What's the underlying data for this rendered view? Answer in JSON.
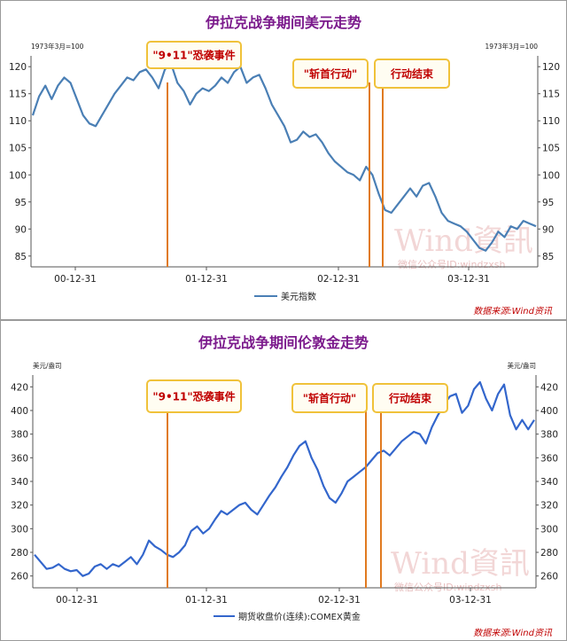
{
  "chart_data": [
    {
      "type": "line",
      "title": "伊拉克战争期间美元走势",
      "unit_label": "1973年3月=100",
      "x_tick_labels": [
        "00-12-31",
        "01-12-31",
        "02-12-31",
        "03-12-31"
      ],
      "y_ticks": [
        85,
        90,
        95,
        100,
        105,
        110,
        115,
        120
      ],
      "ylim": [
        83,
        122
      ],
      "line_color": "#4a7fb5",
      "grid": false,
      "legend_position": "bottom-center",
      "series": [
        {
          "name": "美元指数",
          "values": [
            111.0,
            114.5,
            116.5,
            114.0,
            116.5,
            118.0,
            117.0,
            114.0,
            111.0,
            109.5,
            109.0,
            111.0,
            113.0,
            115.0,
            116.5,
            118.0,
            117.5,
            119.0,
            119.5,
            118.0,
            116.0,
            119.5,
            120.5,
            117.0,
            115.5,
            113.0,
            115.0,
            116.0,
            115.5,
            116.5,
            118.0,
            117.0,
            119.0,
            120.0,
            117.0,
            118.0,
            118.5,
            116.0,
            113.0,
            111.0,
            109.0,
            106.0,
            106.5,
            108.0,
            107.0,
            107.5,
            106.0,
            104.0,
            102.5,
            101.5,
            100.5,
            100.0,
            99.0,
            101.5,
            100.0,
            96.5,
            93.5,
            93.0,
            94.5,
            96.0,
            97.5,
            96.0,
            98.0,
            98.5,
            96.0,
            93.0,
            91.5,
            91.0,
            90.5,
            89.5,
            88.0,
            86.5,
            86.0,
            87.5,
            89.5,
            88.5,
            90.5,
            90.0,
            91.5,
            91.0,
            90.5
          ]
        }
      ],
      "annotations": [
        {
          "label": "\"9•11\"恐袭事件"
        },
        {
          "label": "\"斩首行动\""
        },
        {
          "label": "行动结束"
        }
      ],
      "event_line_color": "#e07a20",
      "source": "数据来源:Wind资讯",
      "watermark": "Wind資訊",
      "watermark_sub": "微信公众号ID:windzxsh"
    },
    {
      "type": "line",
      "title": "伊拉克战争期间伦敦金走势",
      "unit_label": "美元/盎司",
      "x_tick_labels": [
        "00-12-31",
        "01-12-31",
        "02-12-31",
        "03-12-31"
      ],
      "y_ticks": [
        260,
        280,
        300,
        320,
        340,
        360,
        380,
        400,
        420
      ],
      "ylim": [
        250,
        430
      ],
      "line_color": "#3366cc",
      "grid": false,
      "legend_position": "bottom-center",
      "series": [
        {
          "name": "期货收盘价(连续):COMEX黄金",
          "values": [
            278,
            272,
            266,
            267,
            270,
            266,
            264,
            265,
            260,
            262,
            268,
            270,
            266,
            270,
            268,
            272,
            276,
            270,
            278,
            290,
            285,
            282,
            278,
            276,
            280,
            286,
            298,
            302,
            296,
            300,
            308,
            315,
            312,
            316,
            320,
            322,
            316,
            312,
            320,
            328,
            335,
            344,
            352,
            362,
            370,
            374,
            360,
            350,
            336,
            326,
            322,
            330,
            340,
            344,
            348,
            352,
            358,
            364,
            366,
            362,
            368,
            374,
            378,
            382,
            380,
            372,
            386,
            396,
            405,
            412,
            414,
            398,
            404,
            418,
            424,
            410,
            400,
            414,
            422,
            396,
            384,
            392,
            384,
            392
          ]
        }
      ],
      "annotations": [
        {
          "label": "\"9•11\"恐袭事件"
        },
        {
          "label": "\"斩首行动\""
        },
        {
          "label": "行动结束"
        }
      ],
      "event_line_color": "#e07a20",
      "source": "数据来源:Wind资讯",
      "watermark": "Wind資訊",
      "watermark_sub": "微信公众号ID:windzxsh"
    }
  ]
}
